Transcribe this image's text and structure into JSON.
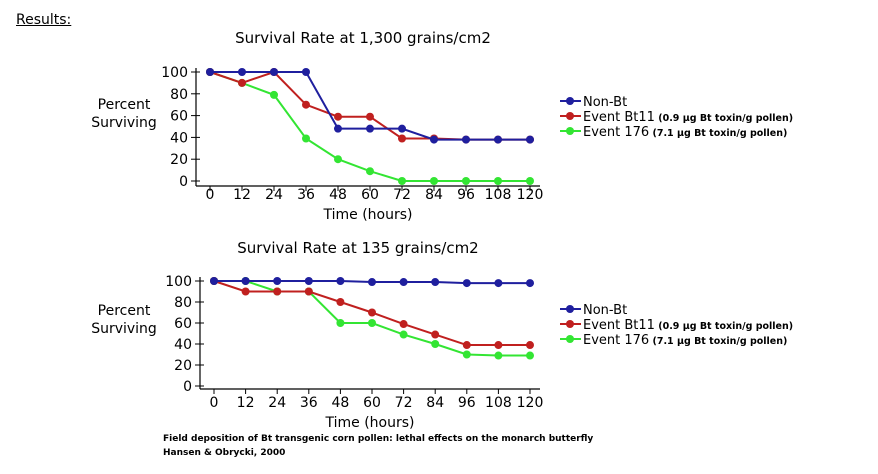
{
  "heading": "Results:",
  "legend_items": [
    {
      "name": "Non-Bt",
      "detail": "",
      "color": "#1f1f9e"
    },
    {
      "name": "Event Bt11",
      "detail": "(0.9 µg Bt toxin/g pollen)",
      "color": "#c0201f"
    },
    {
      "name": "Event 176",
      "detail": "(7.1 µg Bt toxin/g pollen)",
      "color": "#33e533"
    }
  ],
  "chart_data": [
    {
      "type": "line",
      "title": "Survival Rate at 1,300 grains/cm2",
      "xlabel": "Time (hours)",
      "ylabel": "Percent Surviving",
      "x": [
        0,
        12,
        24,
        36,
        48,
        60,
        72,
        84,
        96,
        108,
        120
      ],
      "ylim": [
        0,
        100
      ],
      "yticks": [
        0,
        20,
        40,
        60,
        80,
        100
      ],
      "series": [
        {
          "name": "Non-Bt",
          "values": [
            100,
            100,
            100,
            100,
            48,
            48,
            48,
            38,
            38,
            38,
            38
          ]
        },
        {
          "name": "Event Bt11",
          "values": [
            100,
            90,
            100,
            70,
            59,
            59,
            39,
            39,
            38,
            38,
            38
          ]
        },
        {
          "name": "Event 176",
          "values": [
            100,
            90,
            79,
            39,
            20,
            9,
            0,
            0,
            0,
            0,
            0
          ]
        }
      ]
    },
    {
      "type": "line",
      "title": "Survival Rate at 135 grains/cm2",
      "xlabel": "Time (hours)",
      "ylabel": "Percent Surviving",
      "x": [
        0,
        12,
        24,
        36,
        48,
        60,
        72,
        84,
        96,
        108,
        120
      ],
      "ylim": [
        0,
        100
      ],
      "yticks": [
        0,
        20,
        40,
        60,
        80,
        100
      ],
      "series": [
        {
          "name": "Non-Bt",
          "values": [
            100,
            100,
            100,
            100,
            100,
            99,
            99,
            99,
            98,
            98,
            98
          ]
        },
        {
          "name": "Event Bt11",
          "values": [
            100,
            90,
            90,
            90,
            80,
            70,
            59,
            49,
            39,
            39,
            39
          ]
        },
        {
          "name": "Event 176",
          "values": [
            100,
            100,
            90,
            90,
            60,
            60,
            49,
            40,
            30,
            29,
            29
          ]
        }
      ]
    }
  ],
  "citation": {
    "line1": "Field deposition of Bt transgenic corn pollen: lethal effects on the monarch butterfly",
    "line2": "Hansen & Obrycki, 2000"
  }
}
